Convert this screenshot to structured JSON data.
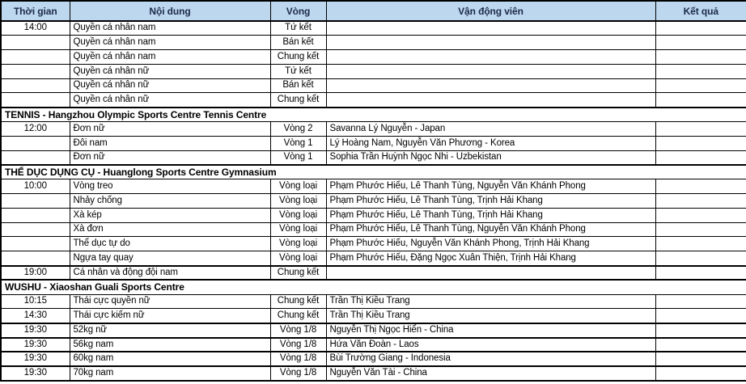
{
  "header": {
    "columns": [
      "Thời gian",
      "Nội dung",
      "Vòng",
      "Vận động viên",
      "Kết quả"
    ]
  },
  "rows": [
    {
      "type": "data",
      "time": "14:00",
      "event": "Quyền cá nhân nam",
      "round": "Tứ kết",
      "athletes": "",
      "result": ""
    },
    {
      "type": "data",
      "time": "",
      "event": "Quyền cá nhân nam",
      "round": "Bán kết",
      "athletes": "",
      "result": ""
    },
    {
      "type": "data",
      "time": "",
      "event": "Quyền cá nhân nam",
      "round": "Chung kết",
      "athletes": "",
      "result": ""
    },
    {
      "type": "data",
      "time": "",
      "event": "Quyền cá nhân nữ",
      "round": "Tứ kết",
      "athletes": "",
      "result": ""
    },
    {
      "type": "data",
      "time": "",
      "event": "Quyền cá nhân nữ",
      "round": "Bán kết",
      "athletes": "",
      "result": ""
    },
    {
      "type": "data",
      "time": "",
      "event": "Quyền cá nhân nữ",
      "round": "Chung kết",
      "athletes": "",
      "result": ""
    },
    {
      "type": "section",
      "label": "TENNIS - Hangzhou Olympic Sports Centre Tennis Centre"
    },
    {
      "type": "data",
      "time": "12:00",
      "event": "Đơn nữ",
      "round": "Vòng 2",
      "athletes": "Savanna Lý Nguyễn - Japan",
      "result": ""
    },
    {
      "type": "data",
      "time": "",
      "event": "Đôi nam",
      "round": "Vòng 1",
      "athletes": "Lý Hoàng Nam, Nguyễn Văn Phương - Korea",
      "result": ""
    },
    {
      "type": "data",
      "time": "",
      "event": "Đơn nữ",
      "round": "Vòng 1",
      "athletes": "Sophia Trần Huỳnh Ngọc Nhi - Uzbekistan",
      "result": ""
    },
    {
      "type": "section",
      "label": "THỂ DỤC DỤNG CỤ - Huanglong Sports Centre Gymnasium"
    },
    {
      "type": "data",
      "time": "10:00",
      "event": "Vòng treo",
      "round": "Vòng loại",
      "athletes": "Phạm Phước Hiếu, Lê Thanh Tùng, Nguyễn Văn Khánh Phong",
      "result": ""
    },
    {
      "type": "data",
      "time": "",
      "event": "Nhảy chống",
      "round": "Vòng loại",
      "athletes": "Phạm Phước Hiếu, Lê Thanh Tùng, Trịnh Hải Khang",
      "result": ""
    },
    {
      "type": "data",
      "time": "",
      "event": "Xà kép",
      "round": "Vòng loại",
      "athletes": "Phạm Phước Hiếu, Lê Thanh Tùng, Trịnh Hải Khang",
      "result": ""
    },
    {
      "type": "data",
      "time": "",
      "event": "Xà đơn",
      "round": "Vòng loại",
      "athletes": "Phạm Phước Hiếu, Lê Thanh Tùng, Nguyễn Văn Khánh Phong",
      "result": ""
    },
    {
      "type": "data",
      "time": "",
      "event": "Thể dục tự do",
      "round": "Vòng loại",
      "athletes": "Phạm Phước Hiếu, Nguyễn Văn Khánh Phong, Trịnh Hải Khang",
      "result": ""
    },
    {
      "type": "data",
      "time": "",
      "event": "Ngựa tay quay",
      "round": "Vòng loại",
      "athletes": "Phạm Phước Hiếu, Đặng Ngọc Xuân Thiện, Trịnh Hải Khang",
      "result": ""
    },
    {
      "type": "data",
      "time": "19:00",
      "event": "Cá nhân và động đội nam",
      "round": "Chung kết",
      "athletes": "",
      "result": ""
    },
    {
      "type": "section",
      "label": "WUSHU - Xiaoshan Guali Sports Centre"
    },
    {
      "type": "data",
      "time": "10:15",
      "event": "Thái cực quyền nữ",
      "round": "Chung kết",
      "athletes": "Trần Thị Kiều Trang",
      "result": ""
    },
    {
      "type": "data",
      "time": "14:30",
      "event": "Thái cực kiếm nữ",
      "round": "Chung kết",
      "athletes": "Trần Thị Kiều Trang",
      "result": ""
    },
    {
      "type": "data",
      "time": "19:30",
      "event": "52kg nữ",
      "round": "Vòng 1/8",
      "athletes": "Nguyễn Thị Ngọc Hiển - China",
      "result": ""
    },
    {
      "type": "data",
      "time": "19:30",
      "event": "56kg nam",
      "round": "Vòng 1/8",
      "athletes": "Hứa Văn Đoàn - Laos",
      "result": ""
    },
    {
      "type": "data",
      "time": "19:30",
      "event": "60kg nam",
      "round": "Vòng 1/8",
      "athletes": "Bùi Trường Giang - Indonesia",
      "result": ""
    },
    {
      "type": "data",
      "time": "19:30",
      "event": "70kg nam",
      "round": "Vòng 1/8",
      "athletes": "Nguyễn Văn Tài - China",
      "result": ""
    }
  ],
  "colors": {
    "header_bg": "#BDD7EE",
    "header_text": "#1B2B49",
    "body_text": "#000000",
    "border": "#000000"
  }
}
